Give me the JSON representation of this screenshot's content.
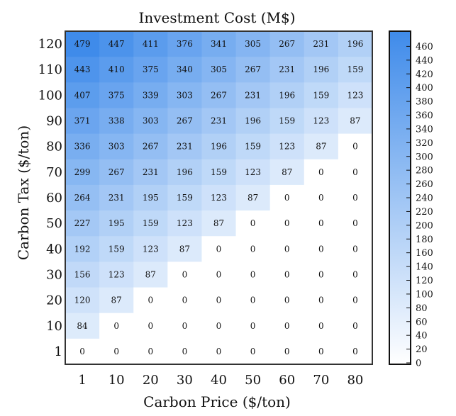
{
  "chart_data": {
    "type": "heatmap",
    "title": "Investment Cost (M$)",
    "xlabel": "Carbon Price ($/ton)",
    "ylabel": "Carbon Tax ($/ton)",
    "x_categories": [
      "1",
      "10",
      "20",
      "30",
      "40",
      "50",
      "60",
      "70",
      "80"
    ],
    "y_categories": [
      "120",
      "110",
      "100",
      "90",
      "80",
      "70",
      "60",
      "50",
      "40",
      "30",
      "20",
      "10",
      "1"
    ],
    "values": [
      [
        479,
        447,
        411,
        376,
        341,
        305,
        267,
        231,
        196
      ],
      [
        443,
        410,
        375,
        340,
        305,
        267,
        231,
        196,
        159
      ],
      [
        407,
        375,
        339,
        303,
        267,
        231,
        196,
        159,
        123
      ],
      [
        371,
        338,
        303,
        267,
        231,
        196,
        159,
        123,
        87
      ],
      [
        336,
        303,
        267,
        231,
        196,
        159,
        123,
        87,
        0
      ],
      [
        299,
        267,
        231,
        196,
        159,
        123,
        87,
        0,
        0
      ],
      [
        264,
        231,
        195,
        159,
        123,
        87,
        0,
        0,
        0
      ],
      [
        227,
        195,
        159,
        123,
        87,
        0,
        0,
        0,
        0
      ],
      [
        192,
        159,
        123,
        87,
        0,
        0,
        0,
        0,
        0
      ],
      [
        156,
        123,
        87,
        0,
        0,
        0,
        0,
        0,
        0
      ],
      [
        120,
        87,
        0,
        0,
        0,
        0,
        0,
        0,
        0
      ],
      [
        84,
        0,
        0,
        0,
        0,
        0,
        0,
        0,
        0
      ],
      [
        0,
        0,
        0,
        0,
        0,
        0,
        0,
        0,
        0
      ]
    ],
    "colorbar": {
      "range": [
        0,
        480
      ],
      "tick_labels": [
        "0",
        "20",
        "40",
        "60",
        "80",
        "100",
        "120",
        "140",
        "160",
        "180",
        "200",
        "220",
        "240",
        "260",
        "280",
        "300",
        "320",
        "340",
        "360",
        "380",
        "400",
        "420",
        "440",
        "460"
      ],
      "color_low": "#ffffff",
      "color_high": "#3f8bea"
    },
    "grid": false
  }
}
